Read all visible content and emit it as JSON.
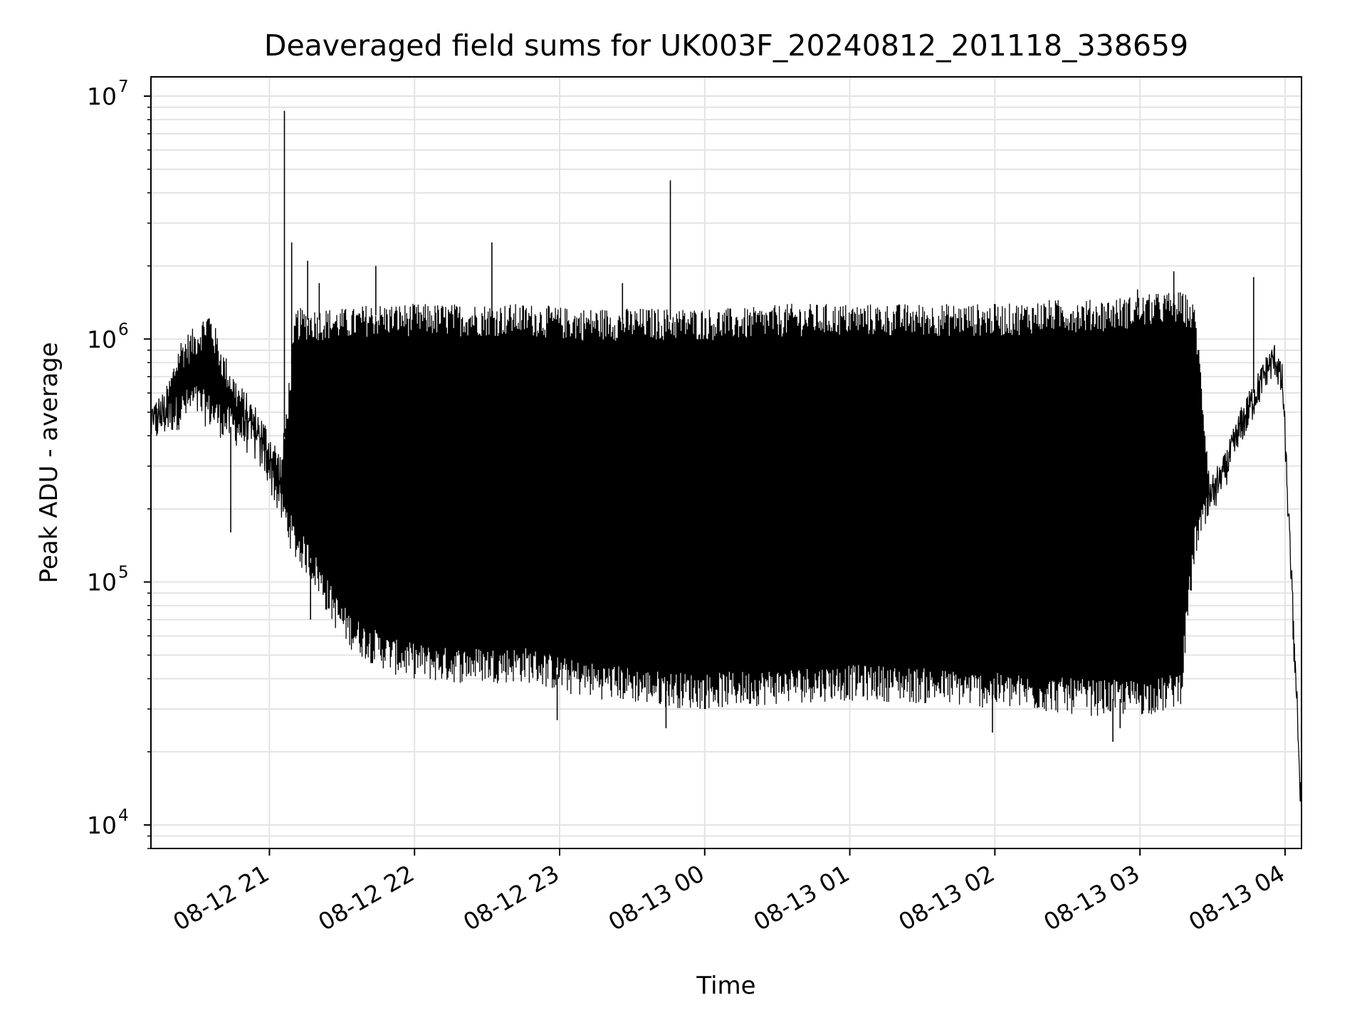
{
  "chart_data": {
    "type": "line",
    "title": "Deaveraged field sums for UK003F_20240812_201118_338659",
    "xlabel": "Time",
    "ylabel": "Peak ADU - average",
    "x_start": "2024-08-12 20:11",
    "x_end": "2024-08-13 04:05",
    "xlim_hours": [
      0.0,
      7.93
    ],
    "y_scale": "log",
    "ylim": [
      8000,
      12000000
    ],
    "grid": true,
    "x_ticks": [
      {
        "hour": 0.8167,
        "label": "08-12 21"
      },
      {
        "hour": 1.8167,
        "label": "08-12 22"
      },
      {
        "hour": 2.8167,
        "label": "08-12 23"
      },
      {
        "hour": 3.8167,
        "label": "08-13 00"
      },
      {
        "hour": 4.8167,
        "label": "08-13 01"
      },
      {
        "hour": 5.8167,
        "label": "08-13 02"
      },
      {
        "hour": 6.8167,
        "label": "08-13 03"
      },
      {
        "hour": 7.8167,
        "label": "08-13 04"
      }
    ],
    "y_ticks": [
      {
        "value": 10000,
        "base": "10",
        "exp": "4"
      },
      {
        "value": 100000,
        "base": "10",
        "exp": "5"
      },
      {
        "value": 1000000,
        "base": "10",
        "exp": "6"
      },
      {
        "value": 10000000,
        "base": "10",
        "exp": "7"
      }
    ],
    "series": [
      {
        "color": "#000000",
        "envelope": {
          "hours": [
            0.0,
            0.1,
            0.2,
            0.3,
            0.4,
            0.5,
            0.6,
            0.7,
            0.8,
            0.9,
            1.0,
            1.1,
            1.2,
            1.3,
            1.4,
            1.5,
            1.7,
            2.0,
            2.3,
            2.6,
            2.9,
            3.2,
            3.5,
            3.8,
            4.1,
            4.4,
            4.7,
            5.0,
            5.3,
            5.6,
            5.9,
            6.2,
            6.5,
            6.8,
            7.0,
            7.1,
            7.15,
            7.2,
            7.3,
            7.4,
            7.5,
            7.6,
            7.7,
            7.75,
            7.8,
            7.85,
            7.88,
            7.93
          ],
          "upper": [
            500000,
            550000,
            900000,
            1000000,
            1200000,
            800000,
            600000,
            500000,
            400000,
            300000,
            1200000,
            1200000,
            1200000,
            1200000,
            1200000,
            1250000,
            1250000,
            1250000,
            1250000,
            1250000,
            1200000,
            1200000,
            1200000,
            1200000,
            1200000,
            1250000,
            1250000,
            1250000,
            1250000,
            1250000,
            1250000,
            1300000,
            1300000,
            1350000,
            1400000,
            1400000,
            1350000,
            1200000,
            250000,
            300000,
            450000,
            600000,
            800000,
            850000,
            700000,
            150000,
            60000,
            12000
          ],
          "lower": [
            420000,
            460000,
            500000,
            550000,
            500000,
            450000,
            420000,
            380000,
            300000,
            200000,
            140000,
            120000,
            90000,
            70000,
            60000,
            55000,
            48000,
            45000,
            45000,
            45000,
            40000,
            38000,
            36000,
            35000,
            36000,
            37000,
            38000,
            38000,
            37000,
            36000,
            35000,
            34000,
            33000,
            33000,
            34000,
            37000,
            80000,
            150000,
            200000,
            280000,
            400000,
            550000,
            750000,
            820000,
            600000,
            130000,
            50000,
            10500
          ]
        },
        "spikes": [
          {
            "hour": 0.92,
            "value": 8700000
          },
          {
            "hour": 0.97,
            "value": 2500000
          },
          {
            "hour": 1.08,
            "value": 2100000
          },
          {
            "hour": 1.16,
            "value": 1700000
          },
          {
            "hour": 1.55,
            "value": 2000000
          },
          {
            "hour": 2.35,
            "value": 2500000
          },
          {
            "hour": 3.25,
            "value": 1700000
          },
          {
            "hour": 3.58,
            "value": 4500000
          },
          {
            "hour": 6.8,
            "value": 1600000
          },
          {
            "hour": 7.05,
            "value": 1900000
          },
          {
            "hour": 7.6,
            "value": 1800000
          }
        ],
        "dips": [
          {
            "hour": 0.55,
            "value": 160000
          },
          {
            "hour": 1.1,
            "value": 70000
          },
          {
            "hour": 2.8,
            "value": 27000
          },
          {
            "hour": 3.55,
            "value": 25000
          },
          {
            "hour": 5.8,
            "value": 24000
          },
          {
            "hour": 6.63,
            "value": 22000
          },
          {
            "hour": 6.68,
            "value": 25000
          }
        ]
      }
    ]
  }
}
